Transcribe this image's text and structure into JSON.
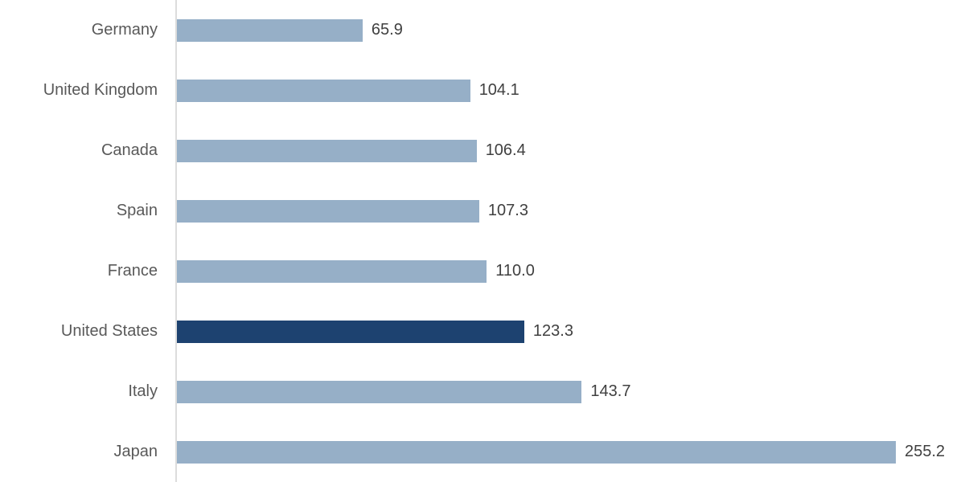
{
  "chart_data": {
    "type": "bar",
    "orientation": "horizontal",
    "title": "",
    "xlabel": "",
    "ylabel": "",
    "categories": [
      "Germany",
      "United Kingdom",
      "Canada",
      "Spain",
      "France",
      "United States",
      "Italy",
      "Japan"
    ],
    "values": [
      65.9,
      104.1,
      106.4,
      107.3,
      110.0,
      123.3,
      143.7,
      255.2
    ],
    "value_labels": [
      "65.9",
      "104.1",
      "106.4",
      "107.3",
      "110.0",
      "123.3",
      "143.7",
      "255.2"
    ],
    "highlighted_category": "United States",
    "xlim": [
      0,
      260
    ],
    "grid": false,
    "legend": false,
    "colors": {
      "bar_default": "#96afc7",
      "bar_highlight": "#1d4270",
      "axis_line": "#dcdcdc",
      "category_text": "#595959",
      "value_text": "#404040",
      "background": "#ffffff"
    }
  }
}
